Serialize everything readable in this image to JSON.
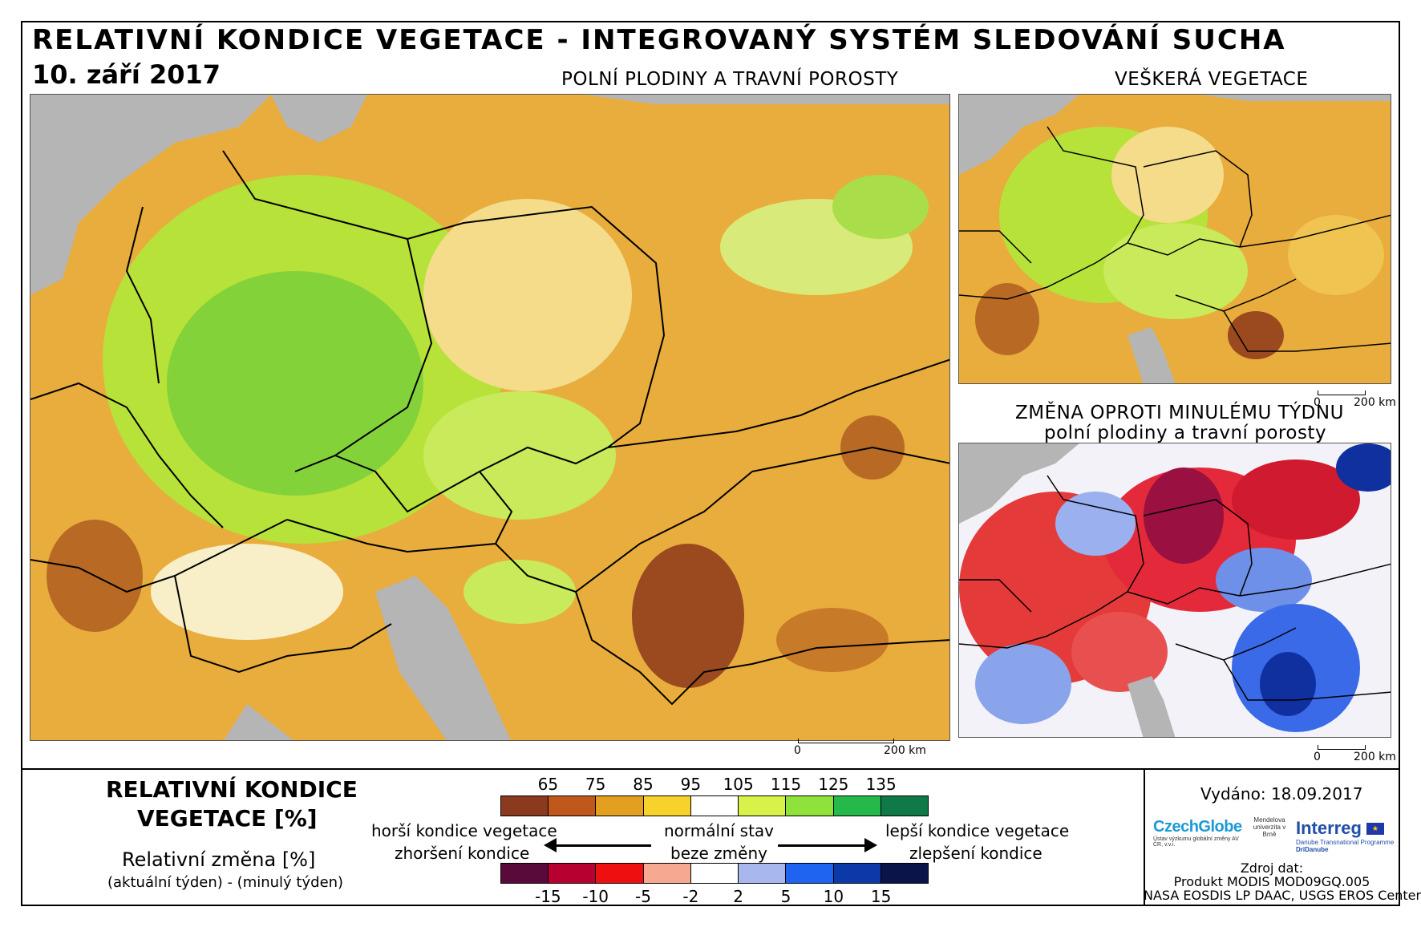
{
  "header": {
    "title": "RELATIVNÍ KONDICE VEGETACE - INTEGROVANÝ SYSTÉM SLEDOVÁNÍ SUCHA",
    "date": "10. září 2017"
  },
  "maps": {
    "main": {
      "label": "POLNÍ PLODINY A TRAVNÍ POROSTY",
      "scale_start": "0",
      "scale_end": "200 km"
    },
    "all_vegetation": {
      "label": "VEŠKERÁ VEGETACE",
      "scale_start": "0",
      "scale_end": "200 km"
    },
    "change": {
      "label_line1": "ZMĚNA OPROTI MINULÉMU TÝDNU",
      "label_line2": "polní plodiny a travní porosty",
      "scale_start": "0",
      "scale_end": "200 km"
    }
  },
  "legend": {
    "title_line1": "RELATIVNÍ KONDICE",
    "title_line2": "VEGETACE [%]",
    "change_title": "Relativní změna [%]",
    "change_subtitle": "(aktuální týden) - (minulý týden)",
    "condition_ticks": [
      "65",
      "75",
      "85",
      "95",
      "105",
      "115",
      "125",
      "135"
    ],
    "condition_colors": [
      "#8b3a1e",
      "#c0581c",
      "#e3a020",
      "#f7d22a",
      "#ffffff",
      "#d9f24a",
      "#8ee23a",
      "#25b84a",
      "#0f7a48"
    ],
    "change_ticks": [
      "-15",
      "-10",
      "-5",
      "-2",
      "2",
      "5",
      "10",
      "15"
    ],
    "change_colors": [
      "#5a0a3a",
      "#b80030",
      "#ee1010",
      "#f7a890",
      "#ffffff",
      "#a8b8ef",
      "#1e64f0",
      "#0b3aa8",
      "#0a1448"
    ],
    "worse_condition": "horší kondice vegetace",
    "normal_state": "normální stav",
    "better_condition": "lepší kondice vegetace",
    "worsening": "zhoršení kondice",
    "no_change": "beze změny",
    "improvement": "zlepšení kondice"
  },
  "footer": {
    "issued": "Vydáno: 18.09.2017",
    "logo_czechglobe": "CzechGlobe",
    "logo_czechglobe_sub": "Ústav výzkumu globální změny AV ČR, v.v.i.",
    "logo_mendel": "Mendelova univerzita v Brně",
    "logo_interreg": "Interreg",
    "logo_interreg_sub1": "Danube Transnational Programme",
    "logo_interreg_sub2": "DriDanube",
    "source_label": "Zdroj dat:",
    "source_line1": "Produkt MODIS MOD09GQ.005",
    "source_line2": "NASA EOSDIS LP DAAC, USGS EROS Center"
  }
}
